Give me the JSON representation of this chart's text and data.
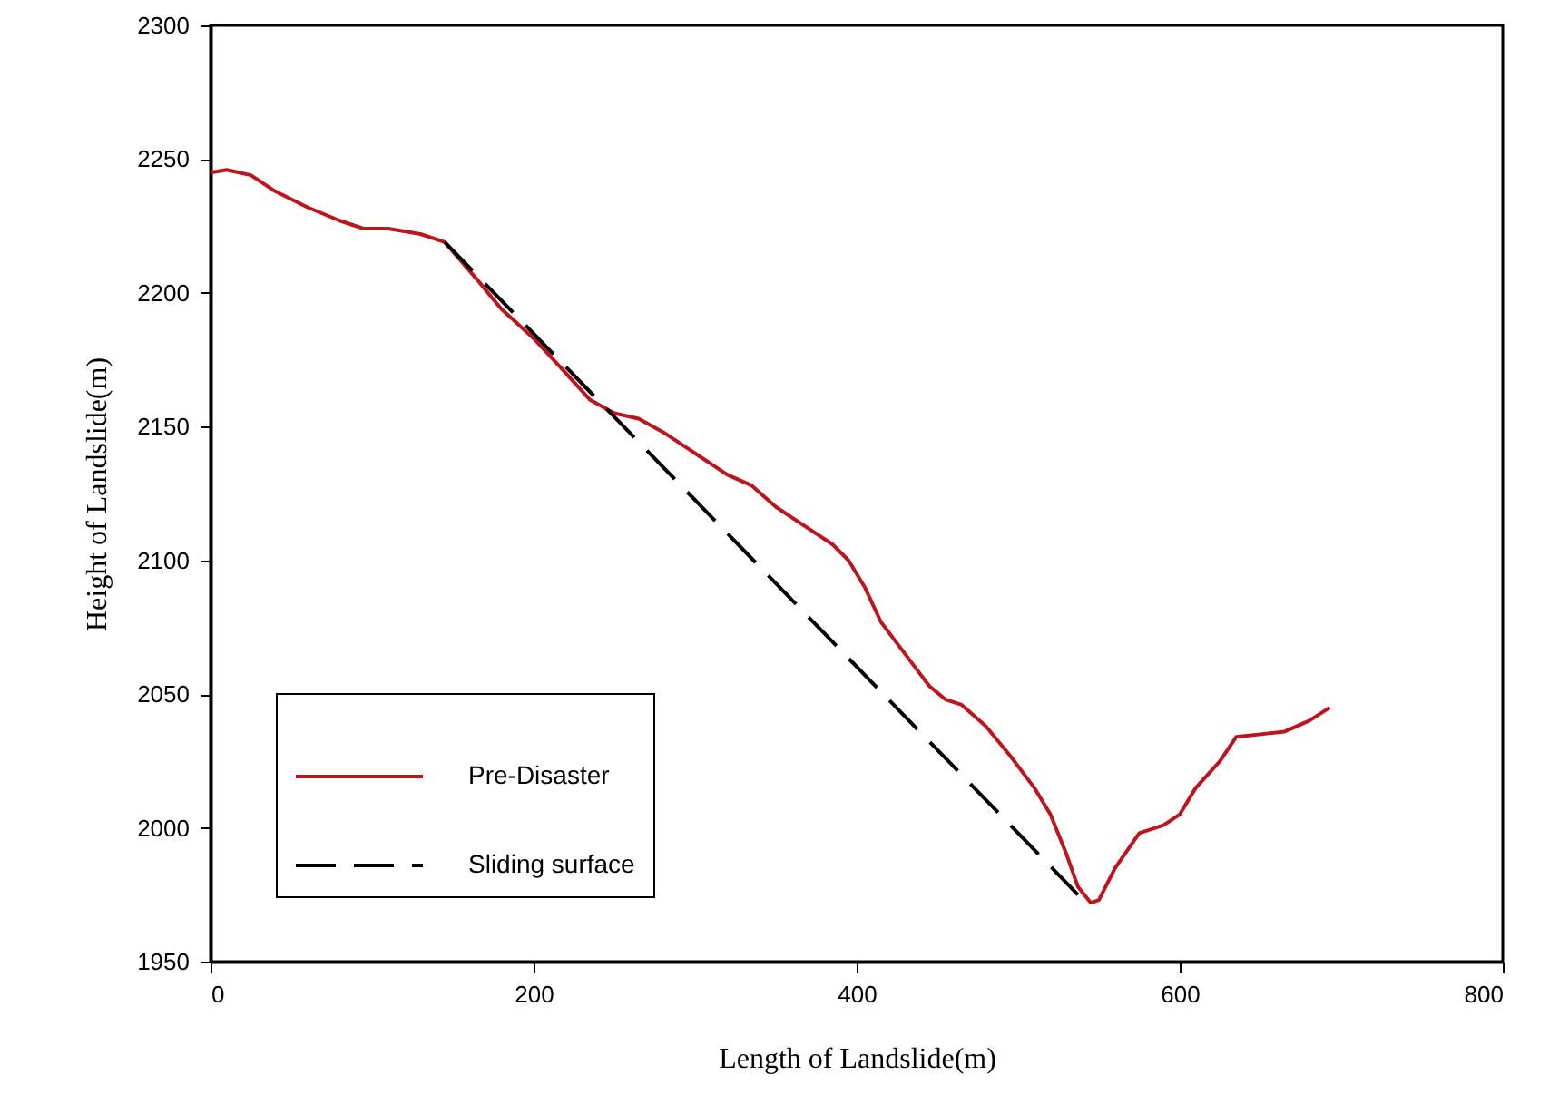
{
  "chart_data": {
    "type": "line",
    "xlabel": "Length of Landslide(m)",
    "ylabel": "Height of Landslide(m)",
    "xlim": [
      0,
      800
    ],
    "xticks": [
      0,
      200,
      400,
      600,
      800
    ],
    "ylim": [
      1950,
      2300
    ],
    "yticks": [
      1950,
      2000,
      2050,
      2100,
      2150,
      2200,
      2250,
      2300
    ],
    "grid": false,
    "legend": "bottom left",
    "series": [
      {
        "name": "Pre-Disaster",
        "color": "#c0141c",
        "line_style": "solid",
        "x": [
          0,
          10,
          25,
          40,
          60,
          80,
          95,
          110,
          130,
          145,
          165,
          180,
          200,
          220,
          235,
          250,
          265,
          280,
          300,
          320,
          335,
          350,
          370,
          385,
          395,
          405,
          415,
          430,
          445,
          455,
          465,
          480,
          495,
          510,
          520,
          530,
          537,
          545,
          550,
          560,
          575,
          590,
          600,
          610,
          625,
          635,
          650,
          665,
          680,
          693
        ],
        "values": [
          2245,
          2246,
          2244,
          2238,
          2232,
          2227,
          2224,
          2224,
          2222,
          2219,
          2205,
          2194,
          2183,
          2170,
          2160,
          2155,
          2153,
          2148,
          2140,
          2132,
          2128,
          2120,
          2112,
          2106,
          2100,
          2090,
          2077,
          2065,
          2053,
          2048,
          2046,
          2038,
          2027,
          2015,
          2005,
          1990,
          1978,
          1972,
          1973,
          1985,
          1998,
          2001,
          2005,
          2015,
          2025,
          2034,
          2035,
          2036,
          2040,
          2045
        ]
      },
      {
        "name": "Sliding surface",
        "color": "#000000",
        "line_style": "dashed",
        "x": [
          145,
          537
        ],
        "values": [
          2219,
          1975
        ]
      }
    ]
  }
}
